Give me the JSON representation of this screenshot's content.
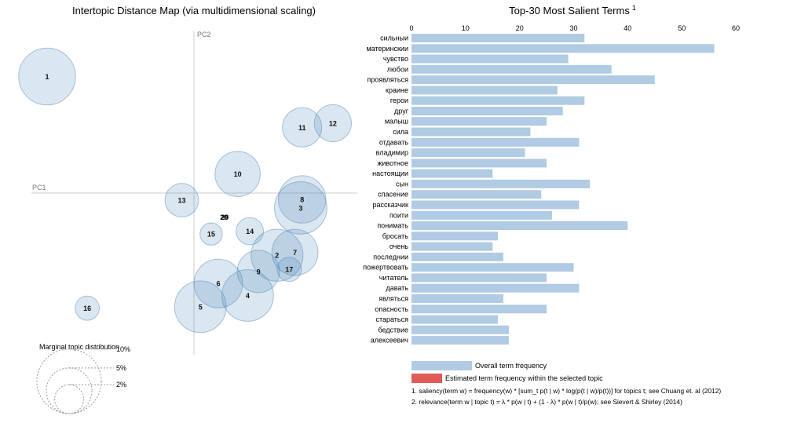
{
  "chart_data": [
    {
      "type": "scatter",
      "title": "Intertopic Distance Map (via multidimensional scaling)",
      "xlabel": "PC1",
      "ylabel": "PC2",
      "grid": false,
      "topics": [
        {
          "label": "1",
          "pc1": -0.205,
          "pc2": 0.165,
          "size_pct": 7.8
        },
        {
          "label": "2",
          "pc1": 0.116,
          "pc2": -0.088,
          "size_pct": 6.5
        },
        {
          "label": "3",
          "pc1": 0.149,
          "pc2": -0.021,
          "size_pct": 6.6
        },
        {
          "label": "4",
          "pc1": 0.075,
          "pc2": -0.145,
          "size_pct": 6.4
        },
        {
          "label": "5",
          "pc1": 0.009,
          "pc2": -0.161,
          "size_pct": 6.4
        },
        {
          "label": "6",
          "pc1": 0.034,
          "pc2": -0.128,
          "size_pct": 5.7
        },
        {
          "label": "7",
          "pc1": 0.141,
          "pc2": -0.084,
          "size_pct": 5.1
        },
        {
          "label": "8",
          "pc1": 0.151,
          "pc2": -0.009,
          "size_pct": 5.4
        },
        {
          "label": "9",
          "pc1": 0.09,
          "pc2": -0.111,
          "size_pct": 4.3
        },
        {
          "label": "10",
          "pc1": 0.061,
          "pc2": 0.027,
          "size_pct": 4.9
        },
        {
          "label": "11",
          "pc1": 0.151,
          "pc2": 0.093,
          "size_pct": 3.7
        },
        {
          "label": "12",
          "pc1": 0.194,
          "pc2": 0.099,
          "size_pct": 3.3
        },
        {
          "label": "13",
          "pc1": -0.017,
          "pc2": -0.01,
          "size_pct": 2.7
        },
        {
          "label": "14",
          "pc1": 0.078,
          "pc2": -0.054,
          "size_pct": 1.8
        },
        {
          "label": "15",
          "pc1": 0.024,
          "pc2": -0.058,
          "size_pct": 1.2
        },
        {
          "label": "16",
          "pc1": -0.149,
          "pc2": -0.163,
          "size_pct": 1.4
        },
        {
          "label": "17",
          "pc1": 0.133,
          "pc2": -0.108,
          "size_pct": 1.4
        },
        {
          "label": "20",
          "pc1": 0.042,
          "pc2": -0.034,
          "size_pct": 0.02
        },
        {
          "label": "29",
          "pc1": 0.043,
          "pc2": -0.034,
          "size_pct": 0.02
        }
      ],
      "size_legend": {
        "title": "Marginal topic distribution",
        "entries": [
          {
            "label": "2%",
            "pct": 2
          },
          {
            "label": "5%",
            "pct": 5
          },
          {
            "label": "10%",
            "pct": 10
          }
        ]
      }
    },
    {
      "type": "bar",
      "orientation": "horizontal",
      "title": "Top-30 Most Salient Terms",
      "title_sup": "1",
      "xlim": [
        0,
        60
      ],
      "xticks": [
        "0",
        "10",
        "20",
        "30",
        "40",
        "50",
        "60"
      ],
      "grid": false,
      "categories": [
        "сильныи",
        "материнскии",
        "чувство",
        "любои",
        "проявляться",
        "краине",
        "герои",
        "друг",
        "малыш",
        "сила",
        "отдавать",
        "владимир",
        "животное",
        "настоящии",
        "сын",
        "спасение",
        "рассказчик",
        "поити",
        "понимать",
        "бросать",
        "очень",
        "последнии",
        "пожертвовать",
        "читатель",
        "давать",
        "являться",
        "опасность",
        "стараться",
        "бедствие",
        "алексеевич"
      ],
      "series": [
        {
          "name": "Overall term frequency",
          "color": "#b0cbe3",
          "values": [
            32,
            56,
            29,
            37,
            45,
            27,
            32,
            28,
            25,
            22,
            31,
            21,
            25,
            15,
            33,
            24,
            31,
            26,
            40,
            16,
            15,
            17,
            30,
            25,
            31,
            17,
            25,
            16,
            18,
            18
          ]
        }
      ],
      "legend": [
        {
          "label": "Overall term frequency",
          "color": "#b0cbe3"
        },
        {
          "label": "Estimated term frequency within the selected topic",
          "color": "#e05a57"
        }
      ],
      "footnotes": [
        "1. saliency(term w) = frequency(w) * [sum_t p(t | w) * log(p(t | w)/p(t))] for topics t; see Chuang et. al (2012)",
        "2. relevance(term w | topic t) = λ * p(w | t) + (1 - λ) * p(w | t)/p(w); see Sievert & Shirley (2014)"
      ]
    }
  ]
}
